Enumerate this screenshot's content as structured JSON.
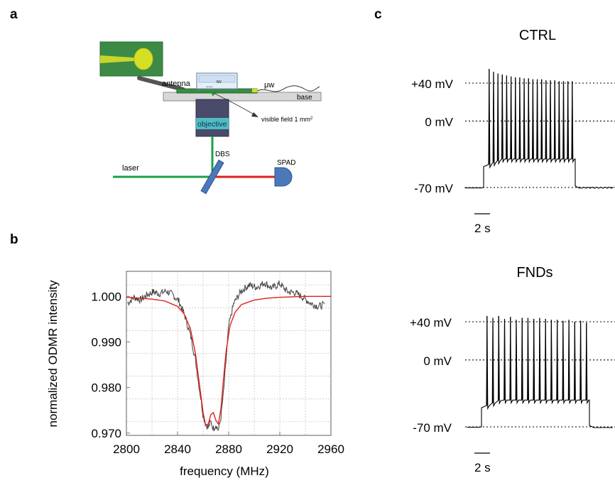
{
  "panels": {
    "a": "a",
    "b": "b",
    "c": "c"
  },
  "setup": {
    "antenna": "antenna",
    "nv": "NV",
    "chip_text": "sample",
    "uw": "μw",
    "base": "base",
    "visible_field": "visible field 1 mm",
    "visible_field_sup": "2",
    "objective": "objective",
    "dbs": "DBS",
    "laser": "laser",
    "spad": "SPAD",
    "colors": {
      "board": "#3a8a43",
      "laser": "#1aa24a",
      "signal": "#e02020",
      "optic": "#4a78b8",
      "objective": "#4dbdc0",
      "objective_body": "#4a4a6a",
      "loop": "#d7df25",
      "inset_bg": "#3c8a45"
    }
  },
  "chart_data": [
    {
      "type": "line",
      "xlabel": "frequency (MHz)",
      "ylabel": "normalized ODMR intensity",
      "xlim": [
        2800,
        2960
      ],
      "ylim": [
        0.9695,
        1.0055
      ],
      "x_ticks": [
        "2800",
        "2840",
        "2880",
        "2920",
        "2960"
      ],
      "x_tick_values": [
        2800,
        2840,
        2880,
        2920,
        2960
      ],
      "y_ticks": [
        "0.970",
        "0.980",
        "0.990",
        "1.000"
      ],
      "y_tick_values": [
        0.97,
        0.98,
        0.99,
        1.0
      ],
      "grid": true,
      "series": [
        {
          "color": "#404040",
          "style": "noisy data",
          "x": [
            2801,
            2806,
            2811,
            2816,
            2821,
            2826,
            2831,
            2836,
            2841,
            2846,
            2851,
            2854,
            2857,
            2860,
            2862,
            2864,
            2866,
            2868,
            2870,
            2872,
            2874,
            2876,
            2878,
            2880,
            2884,
            2890,
            2896,
            2902,
            2908,
            2914,
            2920,
            2926,
            2932,
            2938,
            2944,
            2950,
            2955
          ],
          "y": [
            0.9985,
            0.9998,
            0.9992,
            1.0003,
            1.001,
            1.0006,
            1.0012,
            1.0004,
            0.999,
            0.9955,
            0.9905,
            0.986,
            0.98,
            0.974,
            0.972,
            0.9712,
            0.9725,
            0.971,
            0.9718,
            0.9706,
            0.9735,
            0.979,
            0.986,
            0.9935,
            0.9985,
            1.0012,
            1.0025,
            1.002,
            1.003,
            1.0018,
            1.0028,
            1.001,
            1.0008,
            0.9998,
            0.9985,
            0.9978,
            0.9982
          ]
        },
        {
          "color": "#e02020",
          "style": "fit",
          "x": [
            2800,
            2810,
            2820,
            2830,
            2840,
            2845,
            2850,
            2854,
            2857,
            2860,
            2862,
            2864,
            2866,
            2868,
            2870,
            2872,
            2874,
            2876,
            2878,
            2881,
            2885,
            2890,
            2900,
            2910,
            2920,
            2930,
            2940,
            2960
          ],
          "y": [
            0.9998,
            0.9996,
            0.9994,
            0.999,
            0.9978,
            0.9962,
            0.993,
            0.9875,
            0.981,
            0.9745,
            0.9717,
            0.972,
            0.974,
            0.9745,
            0.9728,
            0.972,
            0.9755,
            0.982,
            0.988,
            0.9935,
            0.9965,
            0.9982,
            0.9992,
            0.9996,
            0.9998,
            0.9999,
            1.0,
            1.0
          ]
        }
      ]
    },
    {
      "type": "line",
      "title": "CTRL",
      "y_ticks": [
        "+40 mV",
        "0 mV",
        "-70 mV"
      ],
      "y_tick_values": [
        40,
        0,
        -70
      ],
      "scale_bar": "2 s",
      "baseline_mv": -70,
      "step_plateau_mv": -40,
      "step_start_mv": -48,
      "spike_count": 20,
      "spike_peaks_mv": [
        55,
        52,
        50,
        49,
        48,
        47,
        46,
        46,
        45,
        45,
        44,
        44,
        44,
        43,
        43,
        43,
        42,
        42,
        42,
        42
      ]
    },
    {
      "type": "line",
      "title": "FNDs",
      "y_ticks": [
        "+40 mV",
        "0 mV",
        "-70 mV"
      ],
      "y_tick_values": [
        40,
        0,
        -70
      ],
      "scale_bar": "2 s",
      "baseline_mv": -70,
      "step_plateau_mv": -42,
      "step_start_mv": -50,
      "spike_count": 18,
      "spike_peaks_mv": [
        46,
        44,
        46,
        43,
        45,
        42,
        44,
        44,
        43,
        44,
        43,
        42,
        42,
        41,
        42,
        40,
        41,
        39
      ]
    }
  ]
}
